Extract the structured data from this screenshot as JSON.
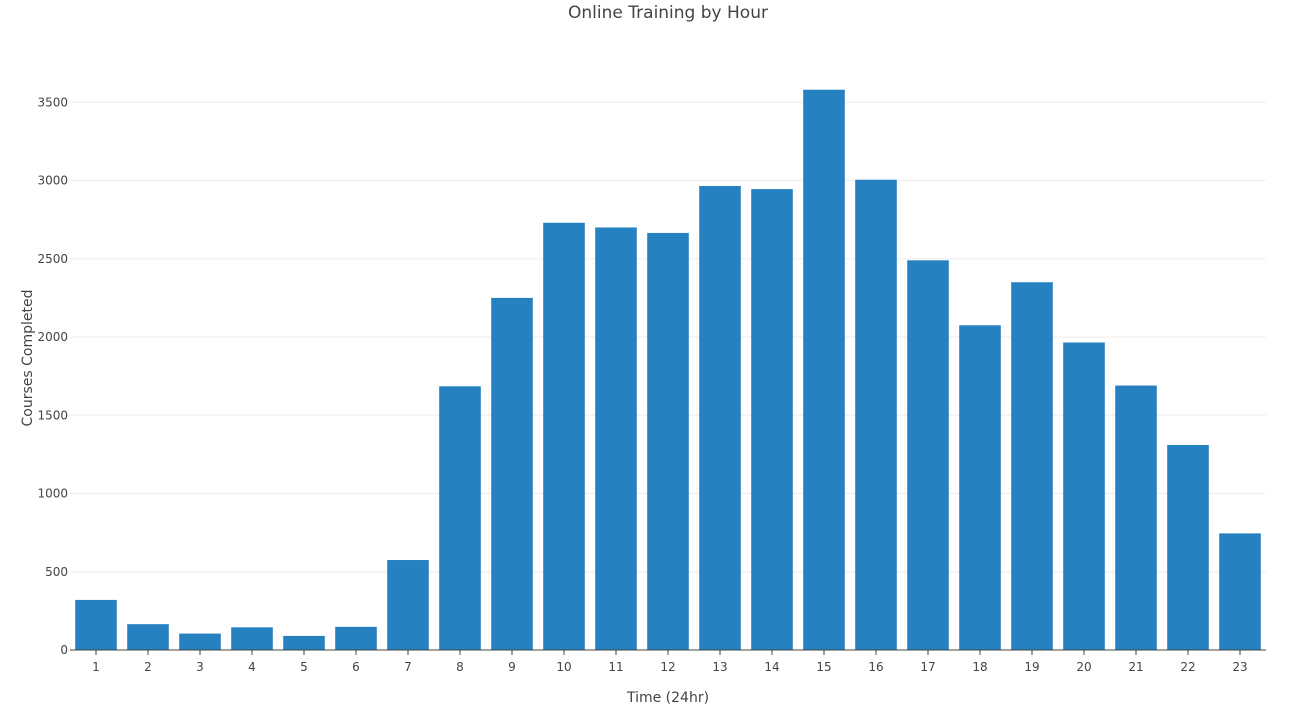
{
  "chart_data": {
    "type": "bar",
    "title": "Online Training by Hour",
    "xlabel": "Time (24hr)",
    "ylabel": "Courses Completed",
    "categories": [
      "1",
      "2",
      "3",
      "4",
      "5",
      "6",
      "7",
      "8",
      "9",
      "10",
      "11",
      "12",
      "13",
      "14",
      "15",
      "16",
      "17",
      "18",
      "19",
      "20",
      "21",
      "22",
      "23"
    ],
    "values": [
      320,
      165,
      105,
      145,
      90,
      148,
      575,
      1685,
      2250,
      2730,
      2700,
      2665,
      2965,
      2945,
      3580,
      3005,
      2490,
      2075,
      2350,
      1965,
      1690,
      1310,
      745
    ],
    "y_ticks": [
      0,
      500,
      1000,
      1500,
      2000,
      2500,
      3000,
      3500
    ],
    "ylim": [
      0,
      3770
    ],
    "grid": true,
    "colors": {
      "bar": "#2581c0",
      "grid": "#eeeeee",
      "axis": "#444444",
      "text": "#444444"
    }
  }
}
